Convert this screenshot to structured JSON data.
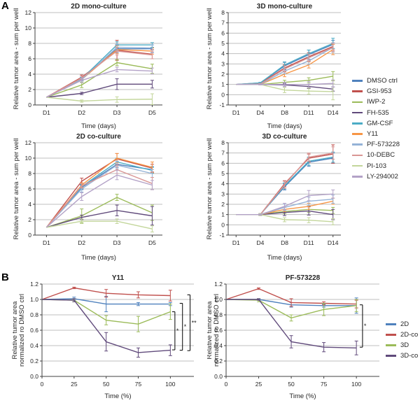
{
  "panels": {
    "a": "A",
    "b": "B"
  },
  "style_colors": {
    "grid": "#BFBFBF",
    "axis": "#404040",
    "text": "#262626",
    "bracket": "#000000"
  },
  "legend_a": {
    "items": [
      {
        "label": "DMSO ctrl",
        "color": "#4F81BD"
      },
      {
        "label": "GSI-953",
        "color": "#C0504D"
      },
      {
        "label": "IWP-2",
        "color": "#9BBB59"
      },
      {
        "label": "FH-535",
        "color": "#604A7B"
      },
      {
        "label": "GM-CSF",
        "color": "#4BACC6"
      },
      {
        "label": "Y11",
        "color": "#F79646"
      },
      {
        "label": "PF-573228",
        "color": "#95B3D7"
      },
      {
        "label": "10-DEBC",
        "color": "#D99694"
      },
      {
        "label": "PI-103",
        "color": "#C3D69B"
      },
      {
        "label": "LY-294002",
        "color": "#B3A2C7"
      }
    ]
  },
  "legend_b": {
    "items": [
      {
        "label": "2D",
        "color": "#4F81BD"
      },
      {
        "label": "2D-co",
        "color": "#C0504D"
      },
      {
        "label": "3D",
        "color": "#9BBB59"
      },
      {
        "label": "3D-co",
        "color": "#604A7B"
      }
    ]
  },
  "chart_data": [
    {
      "type": "line",
      "title": "2D mono-culture",
      "ylabel": [
        "Relative tumor area - sum per well"
      ],
      "xlabel": "Time (days)",
      "categories": [
        "D1",
        "D2",
        "D3",
        "D5"
      ],
      "ylim": [
        0,
        12
      ],
      "ytick_vals": [
        0,
        2,
        4,
        6,
        8,
        10,
        12
      ],
      "ytick_labels": [
        "0",
        "2",
        "4",
        "6",
        "8",
        "10",
        "12"
      ],
      "grid": true,
      "series": [
        {
          "name": "DMSO ctrl",
          "color": "#4F81BD",
          "values": [
            1,
            3.4,
            7.3,
            7.3
          ],
          "err": [
            0,
            0.2,
            0.5,
            0.5
          ]
        },
        {
          "name": "GSI-953",
          "color": "#C0504D",
          "values": [
            1,
            3.6,
            7.1,
            6.6
          ],
          "err": [
            0,
            0.3,
            1.3,
            0.6
          ]
        },
        {
          "name": "IWP-2",
          "color": "#9BBB59",
          "values": [
            1,
            2.6,
            5.5,
            4.7
          ],
          "err": [
            0,
            0.35,
            0.4,
            0.6
          ]
        },
        {
          "name": "FH-535",
          "color": "#604A7B",
          "values": [
            1,
            1.5,
            2.7,
            2.7
          ],
          "err": [
            0,
            0.15,
            0.7,
            0.5
          ]
        },
        {
          "name": "GM-CSF",
          "color": "#4BACC6",
          "values": [
            1,
            3.4,
            7.8,
            7.8
          ],
          "err": [
            0,
            0.2,
            0.4,
            0.3
          ]
        },
        {
          "name": "Y11",
          "color": "#F79646",
          "values": [
            1,
            3.3,
            7.2,
            7.0
          ],
          "err": [
            0,
            0.2,
            0.5,
            0.4
          ]
        },
        {
          "name": "PF-573228",
          "color": "#95B3D7",
          "values": [
            1,
            3.3,
            7.5,
            7.4
          ],
          "err": [
            0,
            0.2,
            0.4,
            0.4
          ]
        },
        {
          "name": "10-DEBC",
          "color": "#D99694",
          "values": [
            1,
            3.5,
            7.0,
            6.5
          ],
          "err": [
            0,
            0.25,
            0.5,
            0.5
          ]
        },
        {
          "name": "PI-103",
          "color": "#C3D69B",
          "values": [
            1,
            0.5,
            0.7,
            0.75
          ],
          "err": [
            0,
            0.15,
            0.35,
            0.7
          ]
        },
        {
          "name": "LY-294002",
          "color": "#B3A2C7",
          "values": [
            1,
            3.2,
            4.6,
            4.4
          ],
          "err": [
            0,
            0.3,
            0.3,
            0.4
          ]
        }
      ],
      "brackets": []
    },
    {
      "type": "line",
      "title": "3D mono-culture",
      "ylabel": [
        "Relative tumor area - sum per well"
      ],
      "xlabel": "Time (days)",
      "categories": [
        "D1",
        "D4",
        "D8",
        "D11",
        "D14"
      ],
      "ylim": [
        -1,
        8
      ],
      "ytick_vals": [
        -1,
        0,
        1,
        2,
        3,
        4,
        5,
        6,
        7,
        8
      ],
      "ytick_labels": [
        "-1",
        "0",
        "1",
        "2",
        "3",
        "4",
        "5",
        "6",
        "7",
        "8"
      ],
      "grid": true,
      "series": [
        {
          "name": "DMSO ctrl",
          "color": "#4F81BD",
          "values": [
            1,
            1.15,
            2.8,
            3.9,
            4.9
          ],
          "err": [
            0,
            0.05,
            0.35,
            0.45,
            0.4
          ]
        },
        {
          "name": "GSI-953",
          "color": "#C0504D",
          "values": [
            1,
            1.1,
            2.6,
            3.7,
            4.7
          ],
          "err": [
            0,
            0.05,
            0.3,
            0.4,
            0.35
          ]
        },
        {
          "name": "IWP-2",
          "color": "#9BBB59",
          "values": [
            1,
            1.0,
            1.2,
            1.4,
            1.8
          ],
          "err": [
            0,
            0.05,
            0.2,
            0.25,
            0.45
          ]
        },
        {
          "name": "FH-535",
          "color": "#604A7B",
          "values": [
            1,
            1.0,
            0.95,
            0.8,
            0.55
          ],
          "err": [
            0,
            0.05,
            0.15,
            0.2,
            0.2
          ]
        },
        {
          "name": "GM-CSF",
          "color": "#4BACC6",
          "values": [
            1,
            1.15,
            2.9,
            4.0,
            5.0
          ],
          "err": [
            0,
            0.05,
            0.3,
            0.35,
            0.5
          ]
        },
        {
          "name": "Y11",
          "color": "#F79646",
          "values": [
            1,
            1.0,
            2.0,
            2.9,
            4.4
          ],
          "err": [
            0,
            0.05,
            0.25,
            0.3,
            0.5
          ]
        },
        {
          "name": "PF-573228",
          "color": "#95B3D7",
          "values": [
            1,
            1.0,
            2.3,
            3.3,
            4.6
          ],
          "err": [
            0,
            0.05,
            0.25,
            0.35,
            0.45
          ]
        },
        {
          "name": "10-DEBC",
          "color": "#D99694",
          "values": [
            1,
            1.05,
            2.5,
            3.6,
            4.6
          ],
          "err": [
            0,
            0.05,
            0.3,
            0.35,
            0.4
          ]
        },
        {
          "name": "PI-103",
          "color": "#C3D69B",
          "values": [
            1,
            1.0,
            0.45,
            0.35,
            0.3
          ],
          "err": [
            0,
            0.05,
            0.25,
            0.3,
            0.8
          ]
        },
        {
          "name": "LY-294002",
          "color": "#B3A2C7",
          "values": [
            1,
            1.0,
            1.0,
            1.0,
            1.1
          ],
          "err": [
            0,
            0.05,
            0.2,
            0.3,
            0.35
          ]
        }
      ],
      "brackets": []
    },
    {
      "type": "line",
      "title": "2D co-culture",
      "ylabel": [
        "Relative tumor area - sum per well"
      ],
      "xlabel": "Time (days)",
      "categories": [
        "D1",
        "D2",
        "D3",
        "D5"
      ],
      "ylim": [
        0,
        12
      ],
      "ytick_vals": [
        0,
        2,
        4,
        6,
        8,
        10,
        12
      ],
      "ytick_labels": [
        "0",
        "2",
        "4",
        "6",
        "8",
        "10",
        "12"
      ],
      "grid": true,
      "series": [
        {
          "name": "DMSO ctrl",
          "color": "#4F81BD",
          "values": [
            1,
            6.2,
            9.2,
            8.5
          ],
          "err": [
            0,
            0.3,
            0.4,
            0.4
          ]
        },
        {
          "name": "GSI-953",
          "color": "#C0504D",
          "values": [
            1,
            7.0,
            9.9,
            8.7
          ],
          "err": [
            0,
            0.4,
            0.7,
            0.5
          ]
        },
        {
          "name": "IWP-2",
          "color": "#9BBB59",
          "values": [
            1,
            2.5,
            4.9,
            2.9
          ],
          "err": [
            0,
            0.9,
            0.4,
            1.0
          ]
        },
        {
          "name": "FH-535",
          "color": "#604A7B",
          "values": [
            1,
            2.3,
            3.2,
            2.5
          ],
          "err": [
            0,
            0.3,
            0.7,
            1.2
          ]
        },
        {
          "name": "GM-CSF",
          "color": "#4BACC6",
          "values": [
            1,
            6.3,
            9.5,
            8.4
          ],
          "err": [
            0,
            0.3,
            0.5,
            0.4
          ]
        },
        {
          "name": "Y11",
          "color": "#F79646",
          "values": [
            1,
            6.5,
            10.0,
            8.8
          ],
          "err": [
            0,
            0.3,
            0.6,
            0.7
          ]
        },
        {
          "name": "PF-573228",
          "color": "#95B3D7",
          "values": [
            1,
            6.0,
            9.1,
            8.0
          ],
          "err": [
            0,
            0.4,
            0.5,
            0.5
          ]
        },
        {
          "name": "10-DEBC",
          "color": "#D99694",
          "values": [
            1,
            6.4,
            8.5,
            6.7
          ],
          "err": [
            0,
            0.3,
            0.5,
            0.8
          ]
        },
        {
          "name": "PI-103",
          "color": "#C3D69B",
          "values": [
            1,
            1.8,
            1.8,
            0.8
          ],
          "err": [
            0,
            0.3,
            0.3,
            0.4
          ]
        },
        {
          "name": "LY-294002",
          "color": "#B3A2C7",
          "values": [
            1,
            5.0,
            7.8,
            6.5
          ],
          "err": [
            0,
            0.5,
            0.6,
            0.6
          ]
        }
      ],
      "brackets": []
    },
    {
      "type": "line",
      "title": "3D co-culture",
      "ylabel": [
        "Relative tumor area - sum per well"
      ],
      "xlabel": "Time (days)",
      "categories": [
        "D1",
        "D4",
        "D8",
        "D11",
        "D14"
      ],
      "ylim": [
        -1,
        8
      ],
      "ytick_vals": [
        -1,
        0,
        1,
        2,
        3,
        4,
        5,
        6,
        7,
        8
      ],
      "ytick_labels": [
        "-1",
        "0",
        "1",
        "2",
        "3",
        "4",
        "5",
        "6",
        "7",
        "8"
      ],
      "grid": true,
      "series": [
        {
          "name": "DMSO ctrl",
          "color": "#4F81BD",
          "values": [
            1,
            1,
            3.7,
            6.1,
            6.5
          ],
          "err": [
            0,
            0.05,
            0.3,
            0.4,
            0.5
          ]
        },
        {
          "name": "GSI-953",
          "color": "#C0504D",
          "values": [
            1,
            1,
            4.0,
            6.5,
            6.9
          ],
          "err": [
            0,
            0.05,
            0.3,
            0.4,
            0.9
          ]
        },
        {
          "name": "IWP-2",
          "color": "#9BBB59",
          "values": [
            1,
            1,
            1.3,
            1.5,
            1.4
          ],
          "err": [
            0,
            0.05,
            0.2,
            0.3,
            0.3
          ]
        },
        {
          "name": "FH-535",
          "color": "#604A7B",
          "values": [
            1,
            1,
            1.2,
            1.35,
            1.0
          ],
          "err": [
            0,
            0.1,
            0.3,
            0.4,
            0.5
          ]
        },
        {
          "name": "GM-CSF",
          "color": "#4BACC6",
          "values": [
            1,
            1,
            3.8,
            6.2,
            6.6
          ],
          "err": [
            0,
            0.05,
            0.3,
            0.4,
            0.5
          ]
        },
        {
          "name": "Y11",
          "color": "#F79646",
          "values": [
            1,
            1,
            1.5,
            1.8,
            2.3
          ],
          "err": [
            0,
            0.05,
            0.2,
            0.3,
            0.3
          ]
        },
        {
          "name": "PF-573228",
          "color": "#95B3D7",
          "values": [
            1,
            1,
            1.7,
            2.3,
            2.5
          ],
          "err": [
            0,
            0.05,
            0.3,
            0.4,
            0.4
          ]
        },
        {
          "name": "10-DEBC",
          "color": "#D99694",
          "values": [
            1,
            1,
            3.9,
            6.6,
            7.0
          ],
          "err": [
            0,
            0.05,
            0.35,
            0.4,
            0.6
          ]
        },
        {
          "name": "PI-103",
          "color": "#C3D69B",
          "values": [
            1,
            1,
            0.5,
            0.45,
            0.3
          ],
          "err": [
            0,
            0.1,
            0.2,
            0.25,
            0.3
          ]
        },
        {
          "name": "LY-294002",
          "color": "#B3A2C7",
          "values": [
            1,
            1,
            1.8,
            2.85,
            3.0
          ],
          "err": [
            0,
            0.05,
            0.3,
            0.5,
            0.4
          ]
        }
      ],
      "brackets": []
    },
    {
      "type": "line",
      "title": "Y11",
      "ylabel": [
        "Relative tumor area",
        "normalized ro DMSO ctrl"
      ],
      "xlabel": "Time (%)",
      "categories": [
        "0",
        "25",
        "50",
        "75",
        "100"
      ],
      "ylim": [
        0,
        1.2
      ],
      "ytick_vals": [
        0,
        0.2,
        0.4,
        0.6,
        0.8,
        1.0,
        1.2
      ],
      "ytick_labels": [
        "0.0",
        "0.2",
        "0.4",
        "0.6",
        "0.8",
        "1.0",
        "1.2"
      ],
      "grid": true,
      "series": [
        {
          "name": "2D",
          "color": "#4F81BD",
          "values": [
            1.0,
            1.01,
            0.94,
            0.94,
            0.94
          ],
          "err": [
            0,
            0.02,
            0.1,
            0.02,
            0.02
          ]
        },
        {
          "name": "2D-co",
          "color": "#C0504D",
          "values": [
            1.0,
            1.15,
            1.08,
            1.06,
            1.05
          ],
          "err": [
            0,
            0.01,
            0.05,
            0.04,
            0.07
          ]
        },
        {
          "name": "3D",
          "color": "#9BBB59",
          "values": [
            1.0,
            0.99,
            0.73,
            0.68,
            0.84
          ],
          "err": [
            0,
            0.02,
            0.06,
            0.1,
            0.1
          ]
        },
        {
          "name": "3D-co",
          "color": "#604A7B",
          "values": [
            1.0,
            0.99,
            0.45,
            0.31,
            0.34
          ],
          "err": [
            0,
            0.02,
            0.12,
            0.06,
            0.07
          ]
        }
      ],
      "brackets": [
        {
          "xf": 0.875,
          "y1": 0.84,
          "y2": 0.345,
          "label": "*"
        },
        {
          "xf": 0.925,
          "y1": 0.95,
          "y2": 0.34,
          "label": "*"
        },
        {
          "xf": 0.975,
          "y1": 1.06,
          "y2": 0.335,
          "label": "**"
        }
      ]
    },
    {
      "type": "line",
      "title": "PF-573228",
      "ylabel": [
        "Relative tumor area",
        "normalized ro DMSO ctrl"
      ],
      "xlabel": "Time (%)",
      "categories": [
        "0",
        "25",
        "50",
        "75",
        "100"
      ],
      "ylim": [
        0,
        1.2
      ],
      "ytick_vals": [
        0,
        0.2,
        0.4,
        0.6,
        0.8,
        1.0,
        1.2
      ],
      "ytick_labels": [
        "0.0",
        "0.2",
        "0.4",
        "0.6",
        "0.8",
        "1.0",
        "1.2"
      ],
      "grid": true,
      "series": [
        {
          "name": "2D",
          "color": "#4F81BD",
          "values": [
            1.0,
            1.0,
            0.93,
            0.92,
            0.92
          ],
          "err": [
            0,
            0.01,
            0.03,
            0.02,
            0.1
          ]
        },
        {
          "name": "2D-co",
          "color": "#C0504D",
          "values": [
            1.0,
            1.14,
            0.96,
            0.95,
            0.94
          ],
          "err": [
            0,
            0.01,
            0.05,
            0.02,
            0.05
          ]
        },
        {
          "name": "3D",
          "color": "#9BBB59",
          "values": [
            1.0,
            0.99,
            0.76,
            0.87,
            0.92
          ],
          "err": [
            0,
            0.02,
            0.04,
            0.08,
            0.08
          ]
        },
        {
          "name": "3D-co",
          "color": "#604A7B",
          "values": [
            1.0,
            1.0,
            0.45,
            0.38,
            0.37
          ],
          "err": [
            0,
            0.01,
            0.08,
            0.06,
            0.09
          ]
        }
      ],
      "brackets": [
        {
          "xf": 0.89,
          "y1": 0.93,
          "y2": 0.38,
          "label": "*"
        }
      ]
    }
  ]
}
